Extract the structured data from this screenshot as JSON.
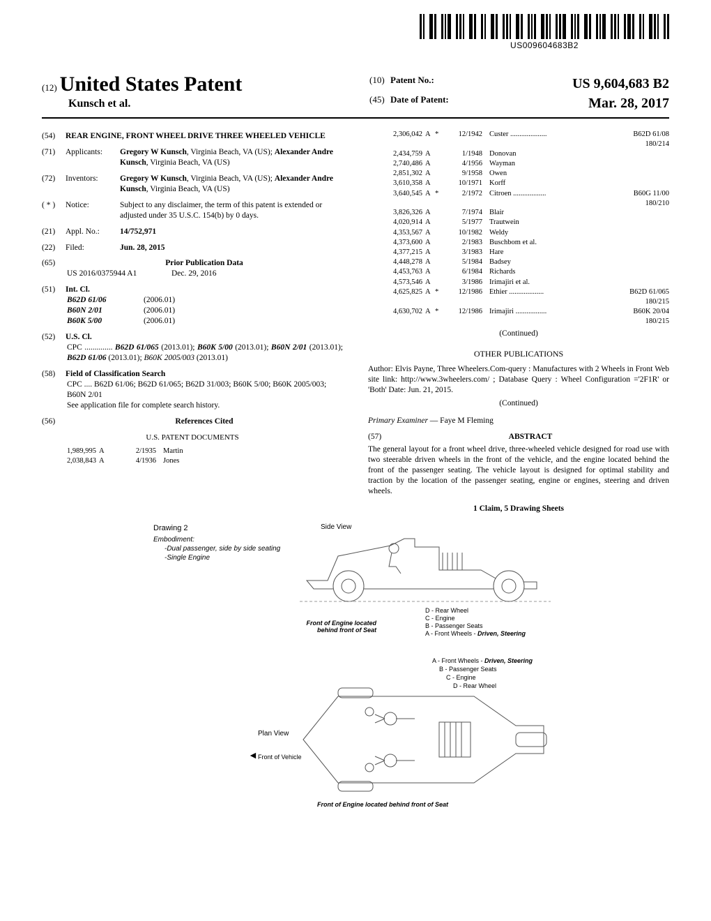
{
  "barcode_text": "US009604683B2",
  "header": {
    "usp_prefix": "(12)",
    "usp_title": "United States Patent",
    "authors": "Kunsch et al.",
    "patent_no_prefix": "(10)",
    "patent_no_label": "Patent No.:",
    "patent_no": "US 9,604,683 B2",
    "date_prefix": "(45)",
    "date_label": "Date of Patent:",
    "date": "Mar. 28, 2017"
  },
  "left": {
    "title_num": "(54)",
    "title": "REAR ENGINE, FRONT WHEEL DRIVE THREE WHEELED VEHICLE",
    "applicants_num": "(71)",
    "applicants_label": "Applicants:",
    "applicants": "Gregory W Kunsch, Virginia Beach, VA (US); Alexander Andre Kunsch, Virginia Beach, VA (US)",
    "inventors_num": "(72)",
    "inventors_label": "Inventors:",
    "inventors": "Gregory W Kunsch, Virginia Beach, VA (US); Alexander Andre Kunsch, Virginia Beach, VA (US)",
    "notice_num": "( * )",
    "notice_label": "Notice:",
    "notice": "Subject to any disclaimer, the term of this patent is extended or adjusted under 35 U.S.C. 154(b) by 0 days.",
    "appl_num": "(21)",
    "appl_label": "Appl. No.:",
    "appl": "14/752,971",
    "filed_num": "(22)",
    "filed_label": "Filed:",
    "filed": "Jun. 28, 2015",
    "prior_pub_num": "(65)",
    "prior_pub_title": "Prior Publication Data",
    "prior_pub": "US 2016/0375944 A1",
    "prior_pub_date": "Dec. 29, 2016",
    "intcl_num": "(51)",
    "intcl_label": "Int. Cl.",
    "intcl": [
      {
        "cls": "B62D 61/06",
        "yr": "(2006.01)"
      },
      {
        "cls": "B60N 2/01",
        "yr": "(2006.01)"
      },
      {
        "cls": "B60K 5/00",
        "yr": "(2006.01)"
      }
    ],
    "uscl_num": "(52)",
    "uscl_label": "U.S. Cl.",
    "uscl_cpc": "CPC .............. B62D 61/065 (2013.01); B60K 5/00 (2013.01); B60N 2/01 (2013.01); B62D 61/06 (2013.01); B60K 2005/003 (2013.01)",
    "field_num": "(58)",
    "field_label": "Field of Classification Search",
    "field_cpc": "CPC .... B62D 61/06; B62D 61/065; B62D 31/003; B60K 5/00; B60K 2005/003; B60N 2/01",
    "field_note": "See application file for complete search history.",
    "refs_num": "(56)",
    "refs_title": "References Cited",
    "refs_sub": "U.S. PATENT DOCUMENTS",
    "refs": [
      {
        "pat": "1,989,995",
        "t": "A",
        "s": "",
        "d": "2/1935",
        "n": "Martin",
        "c": ""
      },
      {
        "pat": "2,038,843",
        "t": "A",
        "s": "",
        "d": "4/1936",
        "n": "Jones",
        "c": ""
      }
    ]
  },
  "right": {
    "refs": [
      {
        "pat": "2,306,042",
        "t": "A",
        "s": "*",
        "d": "12/1942",
        "n": "Custer ....................",
        "c": "B62D 61/08",
        "sub": "180/214"
      },
      {
        "pat": "2,434,759",
        "t": "A",
        "s": "",
        "d": "1/1948",
        "n": "Donovan",
        "c": ""
      },
      {
        "pat": "2,740,486",
        "t": "A",
        "s": "",
        "d": "4/1956",
        "n": "Wayman",
        "c": ""
      },
      {
        "pat": "2,851,302",
        "t": "A",
        "s": "",
        "d": "9/1958",
        "n": "Owen",
        "c": ""
      },
      {
        "pat": "3,610,358",
        "t": "A",
        "s": "",
        "d": "10/1971",
        "n": "Korff",
        "c": ""
      },
      {
        "pat": "3,640,545",
        "t": "A",
        "s": "*",
        "d": "2/1972",
        "n": "Citroen ..................",
        "c": "B60G 11/00",
        "sub": "180/210"
      },
      {
        "pat": "3,826,326",
        "t": "A",
        "s": "",
        "d": "7/1974",
        "n": "Blair",
        "c": ""
      },
      {
        "pat": "4,020,914",
        "t": "A",
        "s": "",
        "d": "5/1977",
        "n": "Trautwein",
        "c": ""
      },
      {
        "pat": "4,353,567",
        "t": "A",
        "s": "",
        "d": "10/1982",
        "n": "Weldy",
        "c": ""
      },
      {
        "pat": "4,373,600",
        "t": "A",
        "s": "",
        "d": "2/1983",
        "n": "Buschbom et al.",
        "c": ""
      },
      {
        "pat": "4,377,215",
        "t": "A",
        "s": "",
        "d": "3/1983",
        "n": "Hare",
        "c": ""
      },
      {
        "pat": "4,448,278",
        "t": "A",
        "s": "",
        "d": "5/1984",
        "n": "Badsey",
        "c": ""
      },
      {
        "pat": "4,453,763",
        "t": "A",
        "s": "",
        "d": "6/1984",
        "n": "Richards",
        "c": ""
      },
      {
        "pat": "4,573,546",
        "t": "A",
        "s": "",
        "d": "3/1986",
        "n": "Irimajiri et al.",
        "c": ""
      },
      {
        "pat": "4,625,825",
        "t": "A",
        "s": "*",
        "d": "12/1986",
        "n": "Ethier ...................",
        "c": "B62D 61/065",
        "sub": "180/215"
      },
      {
        "pat": "4,630,702",
        "t": "A",
        "s": "*",
        "d": "12/1986",
        "n": "Irimajiri .................",
        "c": "B60K 20/04",
        "sub": "180/215"
      }
    ],
    "continued": "(Continued)",
    "other_pub_title": "OTHER PUBLICATIONS",
    "other_pub": "Author: Elvis Payne, Three Wheelers.Com-query : Manufactures with 2 Wheels in Front Web site link: http://www.3wheelers.com/ ; Database Query : Wheel Configuration ='2F1R' or 'Both' Date: Jun. 21, 2015.",
    "other_continued": "(Continued)",
    "examiner_label": "Primary Examiner",
    "examiner": "— Faye M Fleming",
    "abstract_num": "(57)",
    "abstract_label": "ABSTRACT",
    "abstract": "The general layout for a front wheel drive, three-wheeled vehicle designed for road use with two steerable driven wheels in the front of the vehicle, and the engine located behind the front of the passenger seating. The vehicle layout is designed for optimal stability and traction by the location of the passenger seating, engine or engines, steering and driven wheels.",
    "claim": "1 Claim, 5 Drawing Sheets"
  },
  "drawing": {
    "title": "Drawing 2",
    "embodiment": "Embodiment:",
    "emb1": "-Dual passenger, side by side seating",
    "emb2": "-Single Engine",
    "side_view": "Side View",
    "plan_view": "Plan View",
    "front_vehicle": "Front of Vehicle",
    "front_engine": "Front of Engine located behind front of Seat",
    "callout_A": "A - Front Wheels - Driven, Steering",
    "callout_B": "B - Passenger Seats",
    "callout_C": "C - Engine",
    "callout_D": "D - Rear Wheel"
  }
}
